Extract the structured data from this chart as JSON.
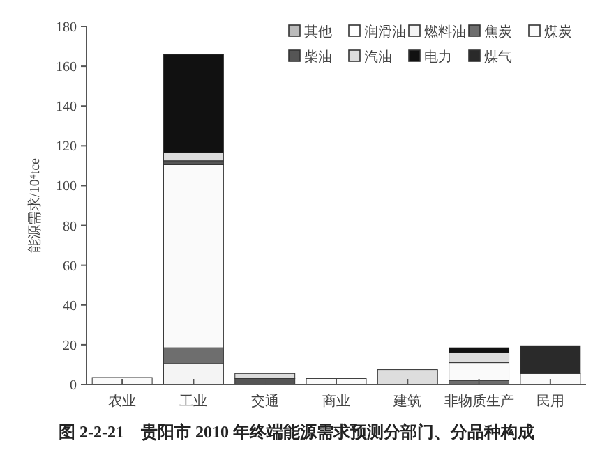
{
  "chart_data": {
    "type": "bar",
    "stacked": true,
    "title": "图 2-2-21　贵阳市 2010 年终端能源需求预测分部门、分品种构成",
    "ylabel": "能源需求/10⁴tce",
    "categories": [
      "农业",
      "工业",
      "交通",
      "商业",
      "建筑",
      "非物质生产",
      "民用"
    ],
    "ylim": [
      0,
      180
    ],
    "yticks": [
      0,
      20,
      40,
      60,
      80,
      100,
      120,
      140,
      160,
      180
    ],
    "grid": false,
    "legend": "top right",
    "series": [
      {
        "name": "其他",
        "color": "#bbbbbb",
        "values": [
          null,
          null,
          null,
          null,
          null,
          null,
          null
        ]
      },
      {
        "name": "润滑油",
        "color": "#ffffff",
        "values": [
          null,
          null,
          null,
          null,
          null,
          null,
          null
        ]
      },
      {
        "name": "燃料油",
        "color": "#f4f4f4",
        "values": [
          null,
          10.5,
          null,
          null,
          null,
          null,
          null
        ]
      },
      {
        "name": "焦炭",
        "color": "#6e6e6e",
        "values": [
          null,
          8,
          null,
          null,
          null,
          2,
          null
        ]
      },
      {
        "name": "煤炭",
        "color": "#fafafa",
        "values": [
          3.5,
          92,
          null,
          3,
          null,
          9,
          5.5
        ]
      },
      {
        "name": "柴油",
        "color": "#555555",
        "values": [
          null,
          2,
          3,
          null,
          null,
          null,
          null
        ]
      },
      {
        "name": "汽油",
        "color": "#dddddd",
        "values": [
          null,
          4,
          2.5,
          null,
          7.5,
          5,
          null
        ]
      },
      {
        "name": "电力",
        "color": "#111111",
        "values": [
          null,
          49.5,
          null,
          null,
          null,
          2.5,
          null
        ]
      },
      {
        "name": "煤气",
        "color": "#2a2a2a",
        "values": [
          null,
          null,
          null,
          null,
          null,
          null,
          14
        ]
      }
    ]
  }
}
